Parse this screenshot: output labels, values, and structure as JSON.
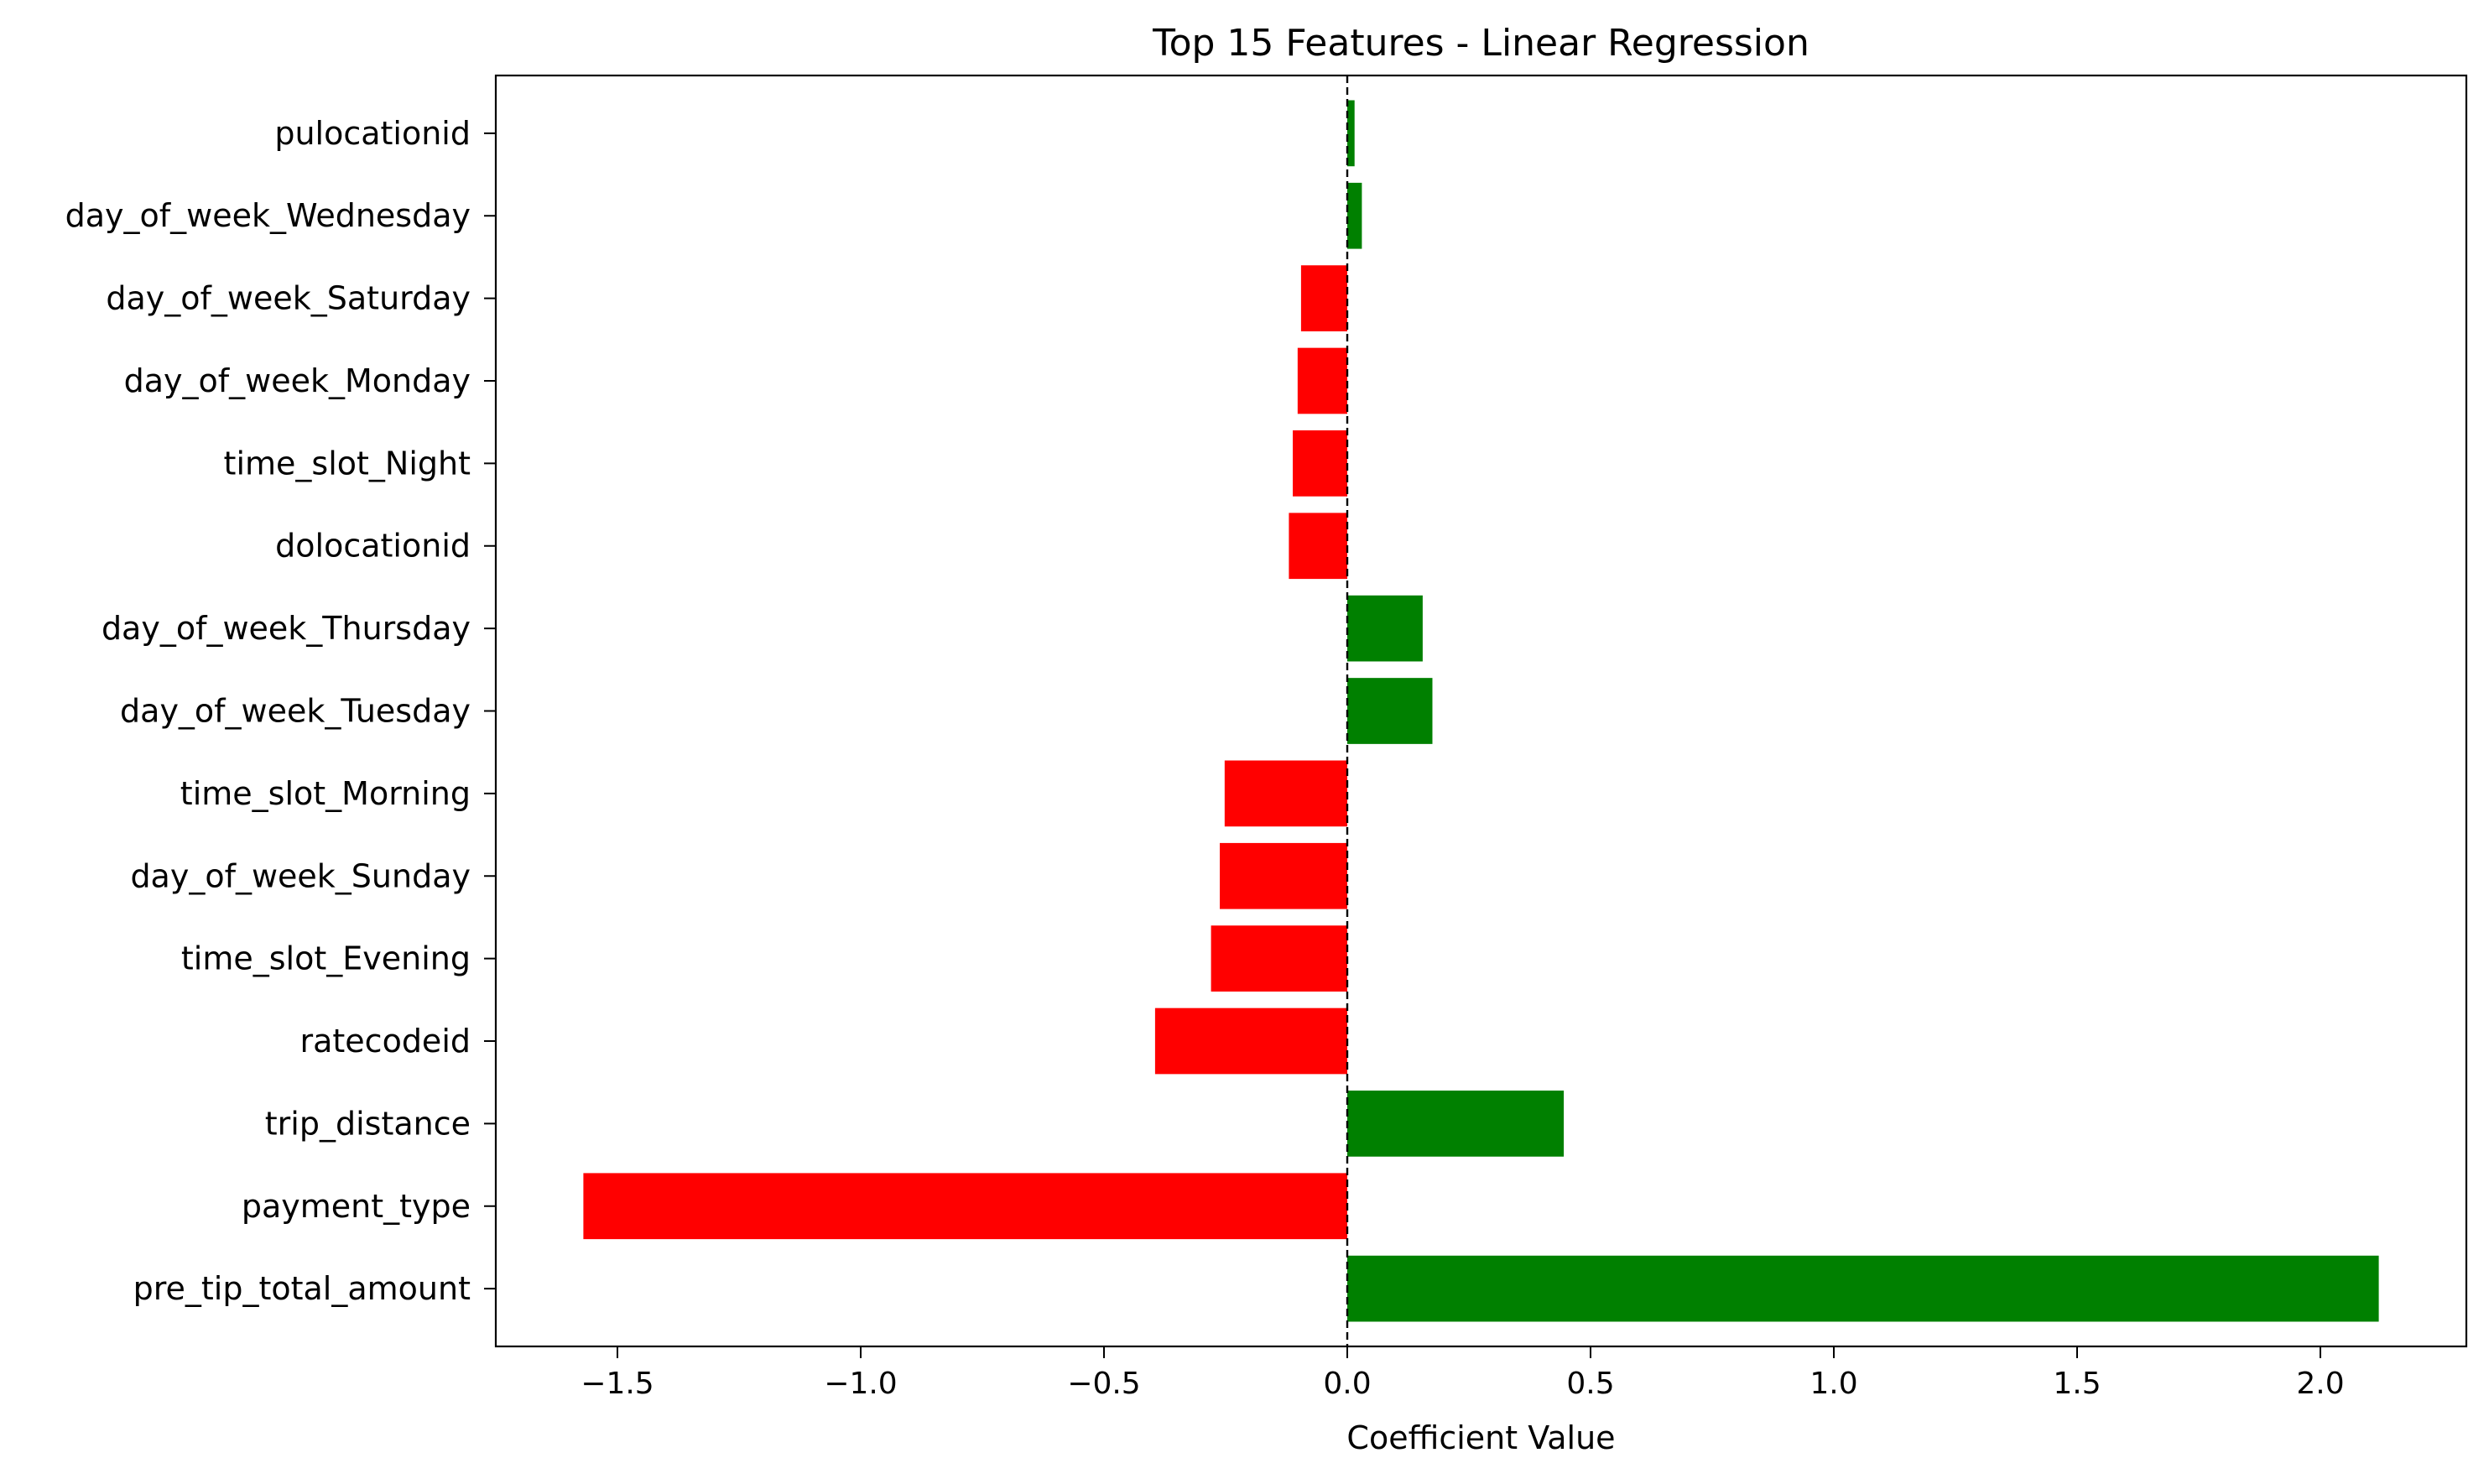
{
  "chart_data": {
    "type": "bar",
    "orientation": "horizontal",
    "title": "Top 15 Features - Linear Regression",
    "xlabel": "Coefficient Value",
    "ylabel": "",
    "xlim": [
      -1.75,
      2.3
    ],
    "xticks": [
      -1.5,
      -1.0,
      -0.5,
      0.0,
      0.5,
      1.0,
      1.5,
      2.0
    ],
    "xtick_labels": [
      "−1.5",
      "−1.0",
      "−0.5",
      "0.0",
      "0.5",
      "1.0",
      "1.5",
      "2.0"
    ],
    "grid": false,
    "reference_line": {
      "x": 0,
      "style": "dashed",
      "color": "#000000"
    },
    "colors": {
      "positive": "#008000",
      "negative": "#ff0000"
    },
    "categories": [
      "pre_tip_total_amount",
      "payment_type",
      "trip_distance",
      "ratecodeid",
      "time_slot_Evening",
      "day_of_week_Sunday",
      "time_slot_Morning",
      "day_of_week_Tuesday",
      "day_of_week_Thursday",
      "dolocationid",
      "time_slot_Night",
      "day_of_week_Monday",
      "day_of_week_Saturday",
      "day_of_week_Wednesday",
      "pulocationid"
    ],
    "values": [
      2.12,
      -1.57,
      0.445,
      -0.395,
      -0.28,
      -0.262,
      -0.252,
      0.175,
      0.155,
      -0.12,
      -0.112,
      -0.102,
      -0.095,
      0.03,
      0.015
    ]
  }
}
